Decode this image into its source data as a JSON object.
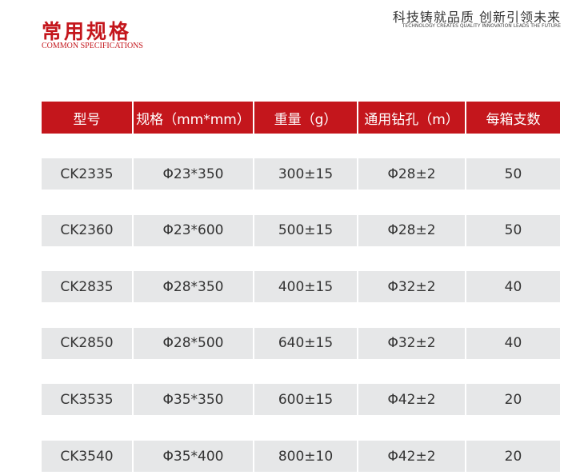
{
  "header": {
    "title": "常用规格",
    "subtitle": "COMMON SPECIFICATIONS",
    "slogan": "科技铸就品质 创新引领未来",
    "slogan_en": "TECHNOLOGY CREATES QUALITY  INNOVATION LEADS THE FUTURE"
  },
  "table": {
    "columns": [
      "型号",
      "规格（mm*mm）",
      "重量（g）",
      "通用钻孔（m）",
      "每箱支数"
    ],
    "rows": [
      [
        "CK2335",
        "Φ23*350",
        "300±15",
        "Φ28±2",
        "50"
      ],
      [
        "CK2360",
        "Φ23*600",
        "500±15",
        "Φ28±2",
        "50"
      ],
      [
        "CK2835",
        "Φ28*350",
        "400±15",
        "Φ32±2",
        "40"
      ],
      [
        "CK2850",
        "Φ28*500",
        "640±15",
        "Φ32±2",
        "40"
      ],
      [
        "CK3535",
        "Φ35*350",
        "600±15",
        "Φ42±2",
        "20"
      ],
      [
        "CK3540",
        "Φ35*400",
        "800±10",
        "Φ42±2",
        "20"
      ]
    ]
  }
}
